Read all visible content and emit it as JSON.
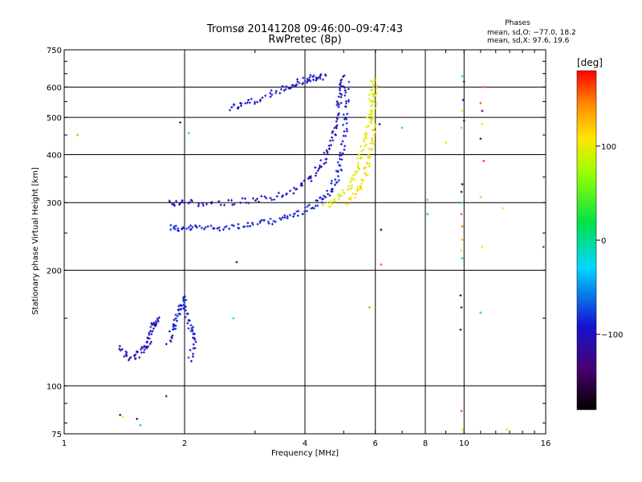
{
  "chart_data": {
    "type": "scatter",
    "title": "Tromsø 20141208 09:46:00–09:47:43",
    "subtitle": "RwPretec (8p)",
    "xlabel": "Frequency [MHz]",
    "ylabel": "Stationary phase Virtual Height [km]",
    "x_scale": "log",
    "y_scale": "log",
    "xlim": [
      1,
      16
    ],
    "ylim": [
      75,
      750
    ],
    "x_ticks": [
      1,
      2,
      4,
      6,
      8,
      10,
      16
    ],
    "x_tick_labels": [
      "1",
      "2",
      "4",
      "6",
      "8",
      "10",
      "16"
    ],
    "y_ticks": [
      75,
      100,
      200,
      300,
      400,
      500,
      600,
      750
    ],
    "y_tick_labels": [
      "75",
      "100",
      "200",
      "300",
      "400",
      "500",
      "600",
      "750"
    ],
    "grid": true,
    "phase_box": {
      "heading": "Phases",
      "line_o": "mean, sd,O: −77.0, 18.2",
      "line_x": "mean, sd,X:  97.6, 19.6"
    },
    "colorbar": {
      "label": "[deg]",
      "range": [
        -180,
        180
      ],
      "ticks": [
        100,
        0,
        -100
      ],
      "tick_labels": [
        "100",
        "0",
        "−100"
      ]
    },
    "traces": [
      {
        "name": "o_trace_low",
        "phase": -90,
        "points": [
          [
            1.84,
            260
          ],
          [
            1.95,
            255
          ],
          [
            2.1,
            258
          ],
          [
            2.3,
            258
          ],
          [
            2.6,
            260
          ],
          [
            2.9,
            262
          ],
          [
            3.2,
            266
          ],
          [
            3.5,
            272
          ],
          [
            3.8,
            280
          ],
          [
            4.1,
            290
          ],
          [
            4.4,
            305
          ],
          [
            4.6,
            320
          ],
          [
            4.8,
            345
          ],
          [
            4.9,
            375
          ],
          [
            5.0,
            420
          ],
          [
            5.05,
            480
          ],
          [
            5.08,
            550
          ],
          [
            5.1,
            620
          ]
        ]
      },
      {
        "name": "o_trace_high",
        "phase": -100,
        "points": [
          [
            1.84,
            300
          ],
          [
            1.95,
            300
          ],
          [
            2.2,
            298
          ],
          [
            2.6,
            300
          ],
          [
            3.0,
            305
          ],
          [
            3.4,
            312
          ],
          [
            3.8,
            325
          ],
          [
            4.1,
            345
          ],
          [
            4.35,
            370
          ],
          [
            4.55,
            400
          ],
          [
            4.7,
            440
          ],
          [
            4.8,
            490
          ],
          [
            4.88,
            540
          ],
          [
            4.94,
            600
          ],
          [
            4.97,
            640
          ]
        ]
      },
      {
        "name": "x_trace_low",
        "phase": 95,
        "points": [
          [
            4.5,
            295
          ],
          [
            4.8,
            305
          ],
          [
            5.1,
            325
          ],
          [
            5.3,
            350
          ],
          [
            5.45,
            380
          ],
          [
            5.6,
            420
          ],
          [
            5.75,
            470
          ],
          [
            5.82,
            520
          ],
          [
            5.88,
            580
          ],
          [
            5.9,
            640
          ]
        ]
      },
      {
        "name": "x_trace_high",
        "phase": 110,
        "points": [
          [
            5.1,
            300
          ],
          [
            5.4,
            320
          ],
          [
            5.6,
            345
          ],
          [
            5.75,
            375
          ],
          [
            5.85,
            410
          ],
          [
            5.92,
            450
          ],
          [
            5.95,
            500
          ],
          [
            5.98,
            560
          ],
          [
            6.0,
            610
          ]
        ]
      },
      {
        "name": "arc",
        "phase": -95,
        "points": [
          [
            2.6,
            530
          ],
          [
            2.8,
            540
          ],
          [
            3.1,
            560
          ],
          [
            3.4,
            585
          ],
          [
            3.7,
            605
          ],
          [
            3.9,
            620
          ],
          [
            4.1,
            630
          ],
          [
            4.3,
            635
          ],
          [
            4.5,
            640
          ]
        ]
      },
      {
        "name": "low_cluster_a",
        "phase": -100,
        "points": [
          [
            1.38,
            125
          ],
          [
            1.45,
            118
          ],
          [
            1.52,
            120
          ],
          [
            1.58,
            125
          ],
          [
            1.62,
            130
          ],
          [
            1.66,
            140
          ],
          [
            1.68,
            145
          ],
          [
            1.72,
            150
          ]
        ]
      },
      {
        "name": "low_cluster_b",
        "phase": -90,
        "points": [
          [
            1.82,
            130
          ],
          [
            1.87,
            140
          ],
          [
            1.92,
            150
          ],
          [
            1.96,
            160
          ],
          [
            1.99,
            170
          ],
          [
            2.03,
            150
          ],
          [
            2.08,
            140
          ],
          [
            2.12,
            130
          ],
          [
            2.05,
            115
          ]
        ]
      }
    ],
    "isolated_points": [
      {
        "x": 1.08,
        "y": 450,
        "phase": 140
      },
      {
        "x": 1.95,
        "y": 485,
        "phase": -110
      },
      {
        "x": 2.05,
        "y": 455,
        "phase": -20
      },
      {
        "x": 2.7,
        "y": 210,
        "phase": -150
      },
      {
        "x": 2.65,
        "y": 150,
        "phase": -20
      },
      {
        "x": 1.38,
        "y": 84,
        "phase": -110
      },
      {
        "x": 1.52,
        "y": 82,
        "phase": -130
      },
      {
        "x": 1.55,
        "y": 79,
        "phase": -40
      },
      {
        "x": 1.4,
        "y": 83,
        "phase": 110
      },
      {
        "x": 1.8,
        "y": 94,
        "phase": -110
      },
      {
        "x": 6.2,
        "y": 255,
        "phase": -160
      },
      {
        "x": 6.2,
        "y": 207,
        "phase": 160
      },
      {
        "x": 6.15,
        "y": 480,
        "phase": -140
      },
      {
        "x": 5.8,
        "y": 160,
        "phase": 140
      },
      {
        "x": 7.0,
        "y": 470,
        "phase": -20
      },
      {
        "x": 8.1,
        "y": 305,
        "phase": 40
      },
      {
        "x": 8.1,
        "y": 280,
        "phase": 0
      },
      {
        "x": 9.0,
        "y": 430,
        "phase": 110
      },
      {
        "x": 9.9,
        "y": 640,
        "phase": -10
      },
      {
        "x": 10.0,
        "y": 620,
        "phase": -100
      },
      {
        "x": 9.95,
        "y": 555,
        "phase": -120
      },
      {
        "x": 9.9,
        "y": 520,
        "phase": 110
      },
      {
        "x": 10.0,
        "y": 490,
        "phase": -150
      },
      {
        "x": 9.85,
        "y": 470,
        "phase": 60
      },
      {
        "x": 9.9,
        "y": 335,
        "phase": -150
      },
      {
        "x": 9.85,
        "y": 320,
        "phase": -130
      },
      {
        "x": 9.9,
        "y": 300,
        "phase": 10
      },
      {
        "x": 9.85,
        "y": 280,
        "phase": 160
      },
      {
        "x": 9.9,
        "y": 260,
        "phase": 150
      },
      {
        "x": 9.9,
        "y": 240,
        "phase": 130
      },
      {
        "x": 9.85,
        "y": 225,
        "phase": 100
      },
      {
        "x": 9.9,
        "y": 215,
        "phase": 20
      },
      {
        "x": 9.8,
        "y": 172,
        "phase": -150
      },
      {
        "x": 9.85,
        "y": 160,
        "phase": -140
      },
      {
        "x": 9.8,
        "y": 140,
        "phase": -110
      },
      {
        "x": 9.85,
        "y": 86,
        "phase": 160
      },
      {
        "x": 9.9,
        "y": 77,
        "phase": 110
      },
      {
        "x": 11.0,
        "y": 545,
        "phase": 160
      },
      {
        "x": 11.1,
        "y": 520,
        "phase": -140
      },
      {
        "x": 11.1,
        "y": 480,
        "phase": 110
      },
      {
        "x": 11.0,
        "y": 440,
        "phase": -150
      },
      {
        "x": 11.2,
        "y": 385,
        "phase": 170
      },
      {
        "x": 11.0,
        "y": 310,
        "phase": 60
      },
      {
        "x": 11.1,
        "y": 230,
        "phase": 110
      },
      {
        "x": 11.0,
        "y": 155,
        "phase": 20
      },
      {
        "x": 11.2,
        "y": 600,
        "phase": 160
      },
      {
        "x": 12.5,
        "y": 290,
        "phase": 100
      },
      {
        "x": 12.8,
        "y": 77,
        "phase": 100
      },
      {
        "x": 15.8,
        "y": 230,
        "phase": -70
      }
    ]
  }
}
